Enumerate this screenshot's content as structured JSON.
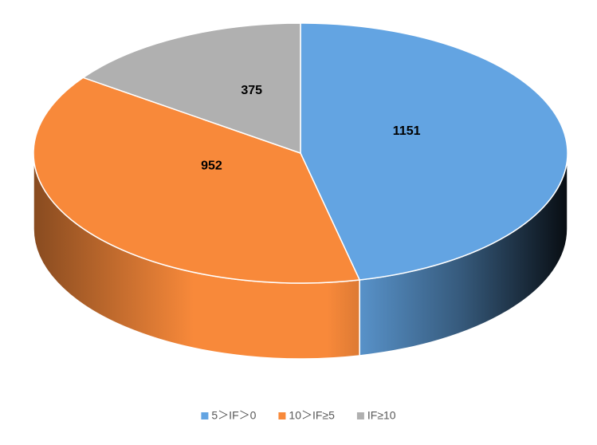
{
  "chart_data": {
    "type": "pie3d",
    "categories": [
      "5＞IF＞0",
      "10＞IF≥5",
      "IF≥10"
    ],
    "values": [
      1151,
      952,
      375
    ],
    "colors": [
      "#63a4e2",
      "#f8893a",
      "#b0b0b0"
    ],
    "legend": "bottom"
  }
}
